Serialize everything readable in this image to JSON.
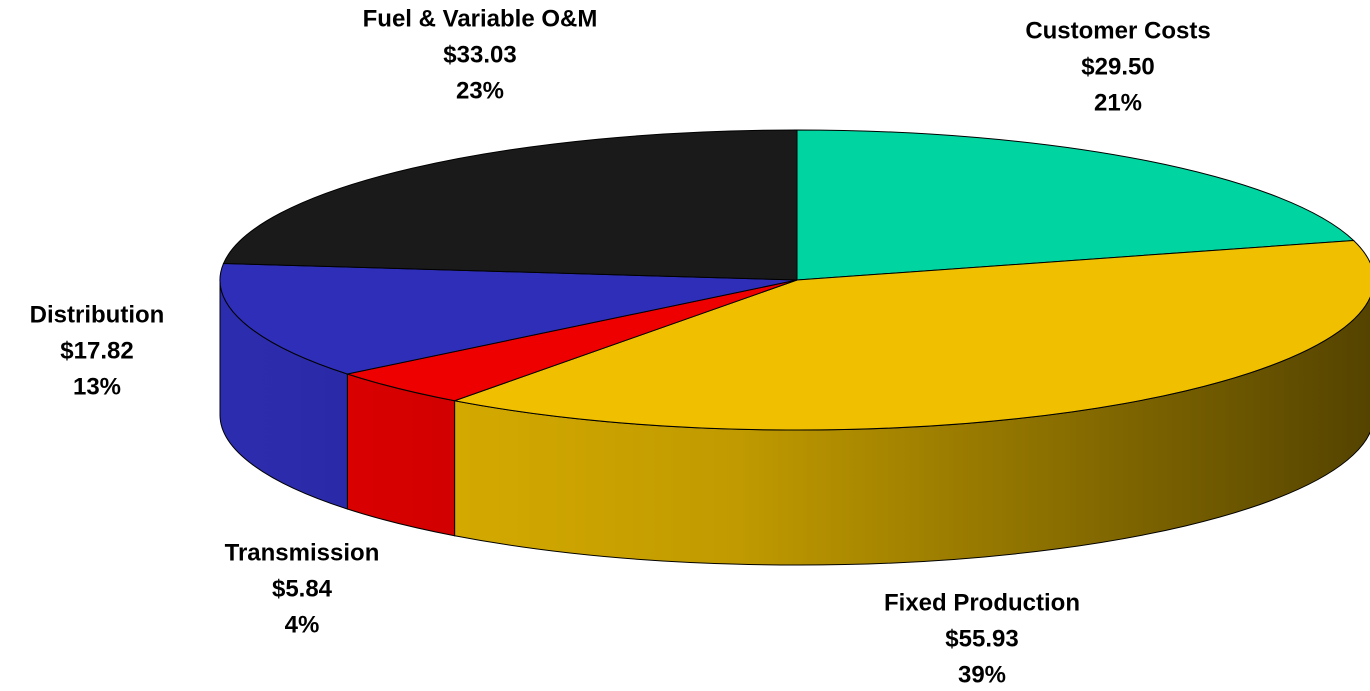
{
  "chart_data": {
    "type": "pie3d",
    "categories": [
      "Customer Costs",
      "Fixed Production",
      "Transmission",
      "Distribution",
      "Fuel & Variable O&M"
    ],
    "values": [
      29.5,
      55.93,
      5.84,
      17.82,
      33.03
    ],
    "value_labels": [
      "$29.50",
      "$55.93",
      "$5.84",
      "$17.82",
      "$33.03"
    ],
    "percent_labels": [
      "21%",
      "39%",
      "4%",
      "13%",
      "23%"
    ],
    "colors": [
      "#00d4a0",
      "#f0c000",
      "#ee0000",
      "#2e2eb8",
      "#1a1a1a"
    ]
  }
}
